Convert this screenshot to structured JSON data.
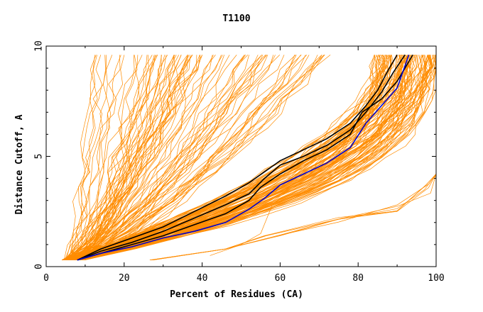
{
  "chart_data": {
    "type": "line",
    "title": "T1100",
    "xlabel": "Percent of Residues (CA)",
    "ylabel": "Distance Cutoff, A",
    "xlim": [
      0,
      100
    ],
    "ylim": [
      0,
      10
    ],
    "x_ticks": [
      0,
      20,
      40,
      60,
      80,
      100
    ],
    "y_ticks": [
      0,
      5,
      10
    ],
    "grid": false,
    "legend": "none",
    "colors": {
      "models": "#ff8c00",
      "highlight_black": "#000000",
      "highlight_blue": "#0000cc"
    },
    "series": [
      {
        "color": "black",
        "x": [
          8,
          14,
          22,
          30,
          38,
          46,
          52,
          56,
          60,
          66,
          72,
          78,
          82,
          85,
          88,
          90
        ],
        "y": [
          0.3,
          0.8,
          1.3,
          1.8,
          2.5,
          3.2,
          3.8,
          4.3,
          4.8,
          5.3,
          5.8,
          6.5,
          7.3,
          8.0,
          9.0,
          9.6
        ]
      },
      {
        "color": "black",
        "x": [
          8,
          14,
          22,
          30,
          38,
          46,
          52,
          56,
          60,
          66,
          72,
          78,
          82,
          86,
          89,
          92
        ],
        "y": [
          0.3,
          0.7,
          1.1,
          1.6,
          2.2,
          2.8,
          3.3,
          4.0,
          4.6,
          5.0,
          5.5,
          6.2,
          7.0,
          7.9,
          8.8,
          9.6
        ]
      },
      {
        "color": "black",
        "x": [
          8,
          14,
          22,
          30,
          38,
          46,
          52,
          55,
          60,
          66,
          72,
          78,
          81,
          86,
          90,
          94
        ],
        "y": [
          0.3,
          0.6,
          1.0,
          1.4,
          1.9,
          2.4,
          3.0,
          3.6,
          4.2,
          4.8,
          5.3,
          6.0,
          7.0,
          7.6,
          8.4,
          9.6
        ]
      },
      {
        "color": "blue",
        "x": [
          8,
          14,
          22,
          30,
          38,
          46,
          52,
          56,
          60,
          66,
          72,
          78,
          82,
          86,
          90,
          93
        ],
        "y": [
          0.3,
          0.6,
          0.9,
          1.3,
          1.6,
          2.0,
          2.6,
          3.1,
          3.7,
          4.2,
          4.7,
          5.4,
          6.5,
          7.3,
          8.1,
          9.6
        ]
      }
    ]
  }
}
